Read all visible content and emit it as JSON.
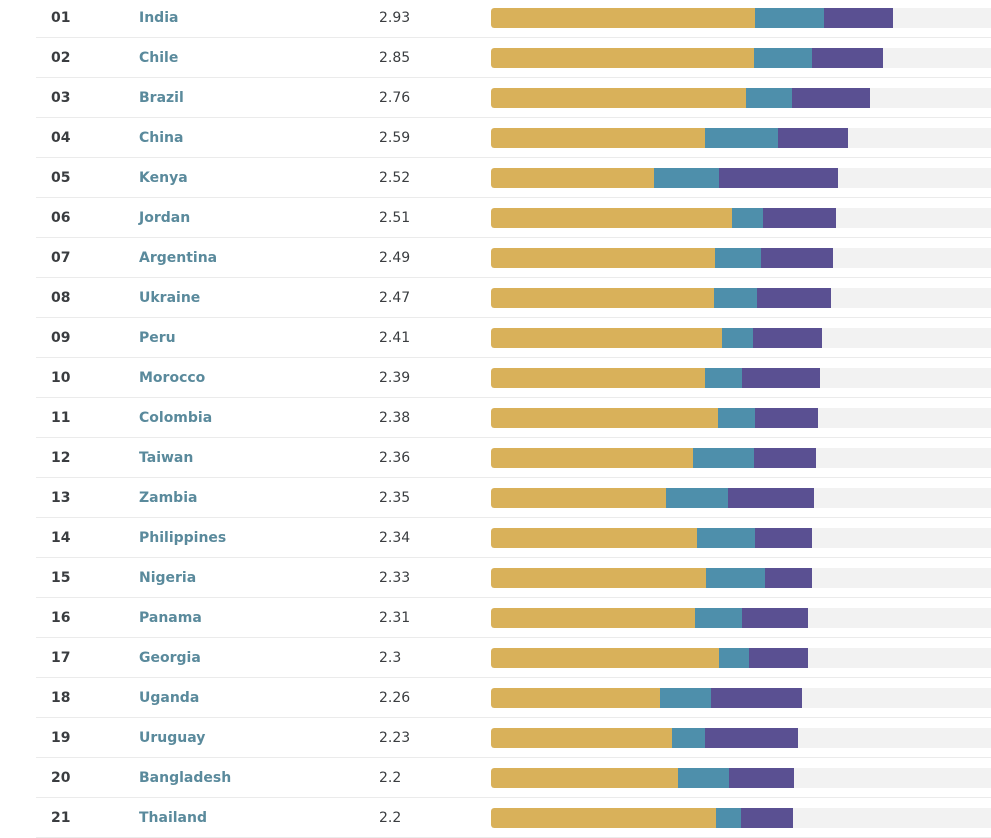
{
  "colors": {
    "segment_a": "#d9b15a",
    "segment_b": "#4e8fab",
    "segment_c": "#5a5092",
    "track": "#f2f2f2",
    "country_text": "#5a8a9c"
  },
  "rows": [
    {
      "rank": "01",
      "country": "India",
      "score": "2.93",
      "segments": [
        0.528,
        0.138,
        0.138
      ]
    },
    {
      "rank": "02",
      "country": "Chile",
      "score": "2.85",
      "segments": [
        0.526,
        0.116,
        0.142
      ]
    },
    {
      "rank": "03",
      "country": "Brazil",
      "score": "2.76",
      "segments": [
        0.51,
        0.092,
        0.156
      ]
    },
    {
      "rank": "04",
      "country": "China",
      "score": "2.59",
      "segments": [
        0.428,
        0.146,
        0.14
      ]
    },
    {
      "rank": "05",
      "country": "Kenya",
      "score": "2.52",
      "segments": [
        0.326,
        0.13,
        0.238
      ]
    },
    {
      "rank": "06",
      "country": "Jordan",
      "score": "2.51",
      "segments": [
        0.482,
        0.062,
        0.146
      ]
    },
    {
      "rank": "07",
      "country": "Argentina",
      "score": "2.49",
      "segments": [
        0.448,
        0.092,
        0.144
      ]
    },
    {
      "rank": "08",
      "country": "Ukraine",
      "score": "2.47",
      "segments": [
        0.446,
        0.086,
        0.148
      ]
    },
    {
      "rank": "09",
      "country": "Peru",
      "score": "2.41",
      "segments": [
        0.462,
        0.062,
        0.138
      ]
    },
    {
      "rank": "10",
      "country": "Morocco",
      "score": "2.39",
      "segments": [
        0.428,
        0.074,
        0.156
      ]
    },
    {
      "rank": "11",
      "country": "Colombia",
      "score": "2.38",
      "segments": [
        0.454,
        0.074,
        0.126
      ]
    },
    {
      "rank": "12",
      "country": "Taiwan",
      "score": "2.36",
      "segments": [
        0.404,
        0.122,
        0.124
      ]
    },
    {
      "rank": "13",
      "country": "Zambia",
      "score": "2.35",
      "segments": [
        0.35,
        0.124,
        0.172
      ]
    },
    {
      "rank": "14",
      "country": "Philippines",
      "score": "2.34",
      "segments": [
        0.412,
        0.116,
        0.114
      ]
    },
    {
      "rank": "15",
      "country": "Nigeria",
      "score": "2.33",
      "segments": [
        0.43,
        0.118,
        0.094
      ]
    },
    {
      "rank": "16",
      "country": "Panama",
      "score": "2.31",
      "segments": [
        0.408,
        0.094,
        0.132
      ]
    },
    {
      "rank": "17",
      "country": "Georgia",
      "score": "2.3",
      "segments": [
        0.456,
        0.06,
        0.118
      ]
    },
    {
      "rank": "18",
      "country": "Uganda",
      "score": "2.26",
      "segments": [
        0.338,
        0.102,
        0.182
      ]
    },
    {
      "rank": "19",
      "country": "Uruguay",
      "score": "2.23",
      "segments": [
        0.362,
        0.066,
        0.186
      ]
    },
    {
      "rank": "20",
      "country": "Bangladesh",
      "score": "2.2",
      "segments": [
        0.374,
        0.102,
        0.13
      ]
    },
    {
      "rank": "21",
      "country": "Thailand",
      "score": "2.2",
      "segments": [
        0.45,
        0.05,
        0.104
      ]
    }
  ]
}
